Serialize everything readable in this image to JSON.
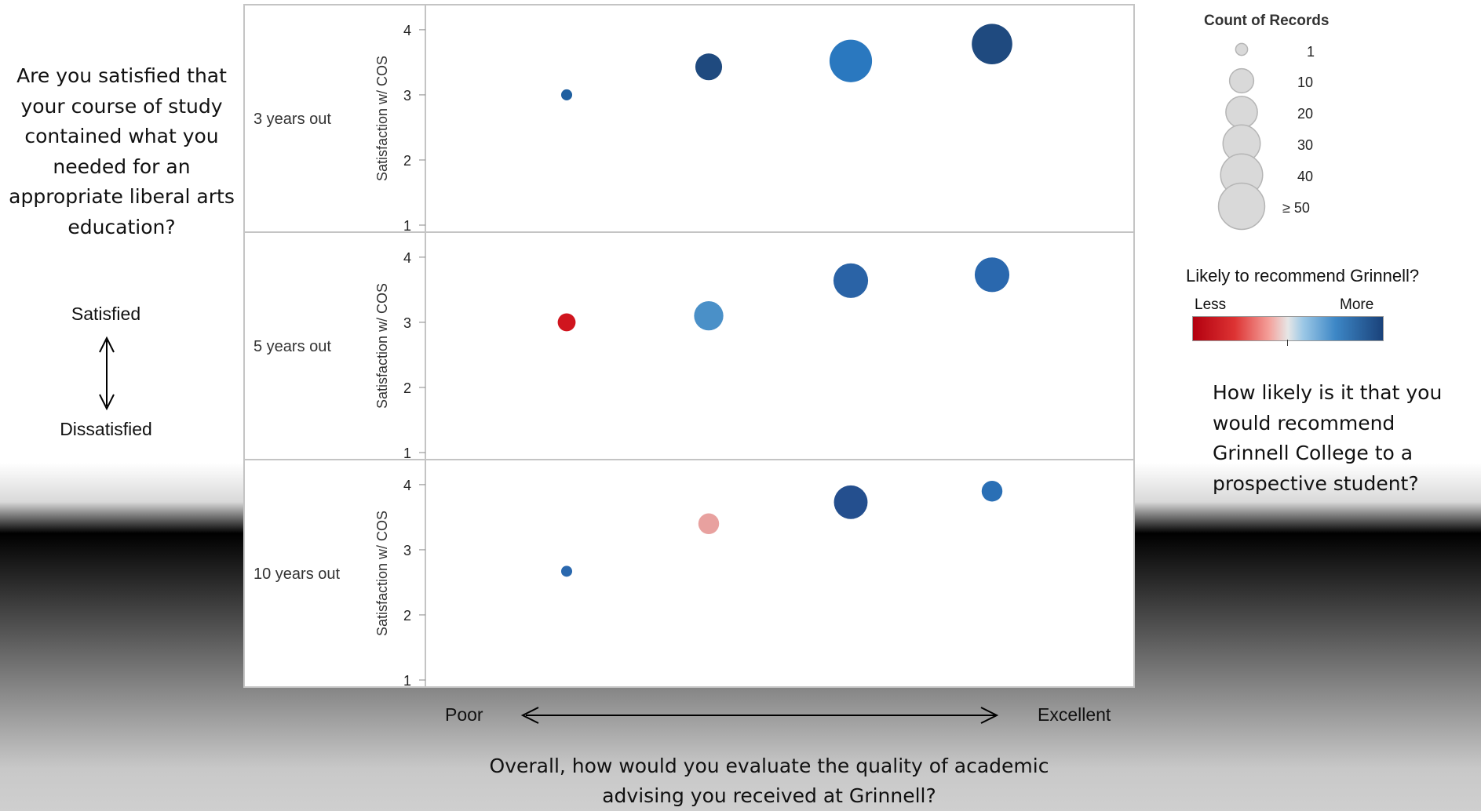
{
  "left_question": "Are you satisfied that your course of study contained what you needed for an appropriate liberal arts education?",
  "satisfied_label": "Satisfied",
  "dissatisfied_label": "Dissatisfied",
  "bottom_question": "Overall, how would you evaluate the quality of academic advising you received at Grinnell?",
  "right_question": "How likely is it that you would recommend Grinnell College to a prospective student?",
  "poor_label": "Poor",
  "excellent_label": "Excellent",
  "size_legend": {
    "title": "Count of Records",
    "labels": [
      "1",
      "10",
      "20",
      "30",
      "40",
      "≥ 50"
    ]
  },
  "color_legend": {
    "title": "Likely to recommend Grinnell?",
    "less": "Less",
    "more": "More"
  },
  "colors": {
    "dark_blue": "#1f4e8a",
    "mid_blue": "#2a6fb5",
    "light_blue": "#4a90c8",
    "red": "#d0151e",
    "pink": "#e8a19f"
  },
  "chart_data": {
    "type": "scatter",
    "y_axis_label": "Satisfaction w/ COS",
    "ylim": [
      1,
      4.3
    ],
    "y_ticks": [
      "1",
      "2",
      "3",
      "4"
    ],
    "x_categories": 4,
    "grid": false,
    "panels": [
      {
        "label": "3 years out",
        "points": [
          {
            "x": 1,
            "y": 3.0,
            "count": 2,
            "color": "#1f5fa0"
          },
          {
            "x": 2,
            "y": 3.43,
            "count": 18,
            "color": "#1f4a7f"
          },
          {
            "x": 3,
            "y": 3.52,
            "count": 50,
            "color": "#2a78bf"
          },
          {
            "x": 4,
            "y": 3.78,
            "count": 45,
            "color": "#1f4a7f"
          }
        ]
      },
      {
        "label": "5 years out",
        "points": [
          {
            "x": 1,
            "y": 3.0,
            "count": 7,
            "color": "#d0151e"
          },
          {
            "x": 2,
            "y": 3.1,
            "count": 22,
            "color": "#4a90c8"
          },
          {
            "x": 3,
            "y": 3.64,
            "count": 32,
            "color": "#2a63a6"
          },
          {
            "x": 4,
            "y": 3.73,
            "count": 32,
            "color": "#2a68ae"
          }
        ]
      },
      {
        "label": "10 years out",
        "points": [
          {
            "x": 1,
            "y": 2.67,
            "count": 2,
            "color": "#2a68ae"
          },
          {
            "x": 2,
            "y": 3.4,
            "count": 10,
            "color": "#e8a19f"
          },
          {
            "x": 3,
            "y": 3.73,
            "count": 30,
            "color": "#244f8e"
          },
          {
            "x": 4,
            "y": 3.9,
            "count": 10,
            "color": "#2a6fb5"
          }
        ]
      }
    ]
  }
}
